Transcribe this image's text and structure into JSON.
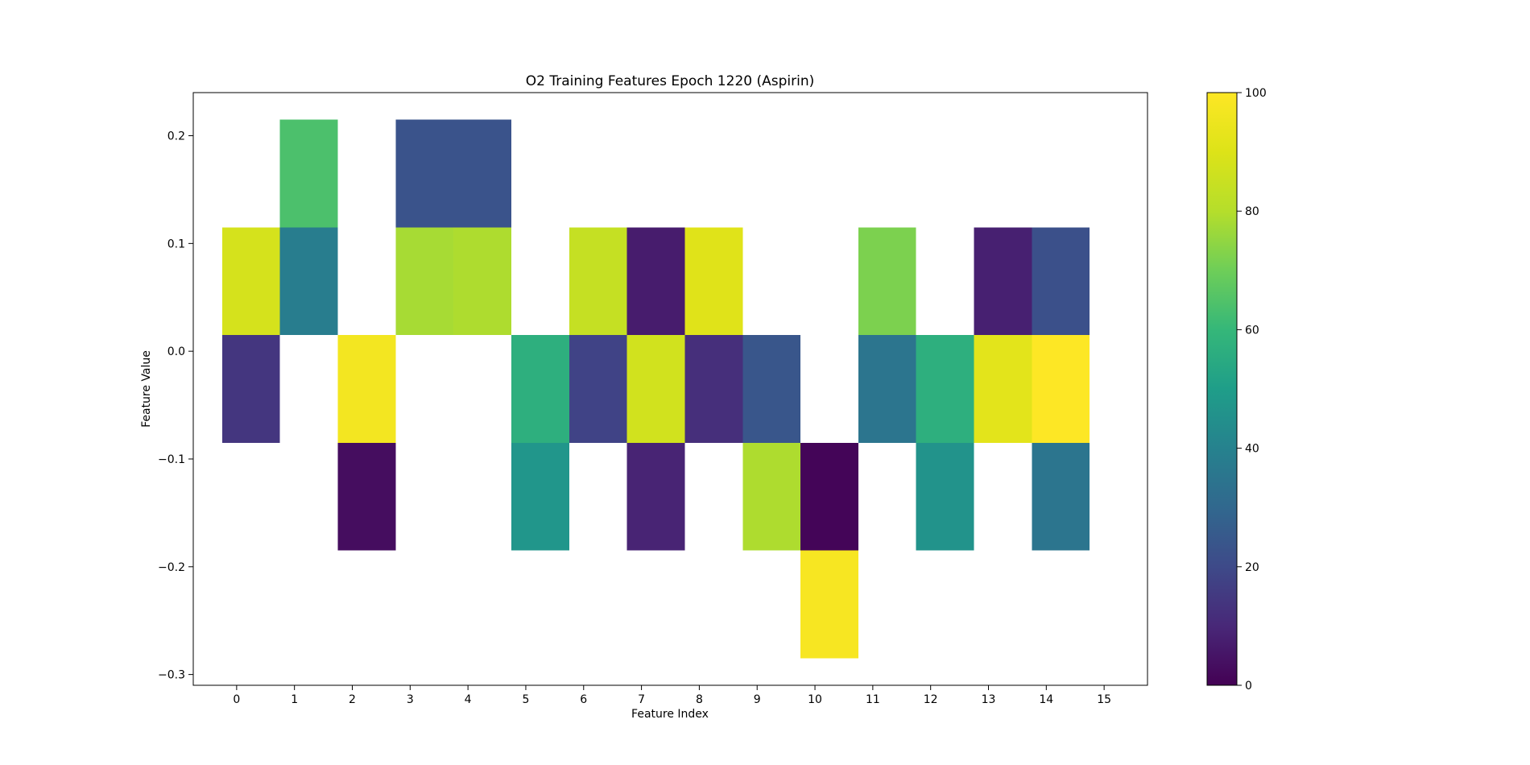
{
  "chart_data": {
    "type": "heatmap",
    "title": "O2 Training Features Epoch 1220 (Aspirin)",
    "xlabel": "Feature Index",
    "ylabel": "Feature Value",
    "x_ticks": [
      0,
      1,
      2,
      3,
      4,
      5,
      6,
      7,
      8,
      9,
      10,
      11,
      12,
      13,
      14,
      15
    ],
    "y_ticks": [
      0.2,
      0.1,
      0.0,
      -0.1,
      -0.2,
      -0.3
    ],
    "y_tick_labels": [
      "0.2",
      "0.1",
      "0.0",
      "−0.1",
      "−0.2",
      "−0.3"
    ],
    "xlim": [
      -0.75,
      15.75
    ],
    "ylim": [
      -0.31,
      0.24
    ],
    "bin_width_x": 1,
    "bin_height_y": 0.1,
    "colormap": "viridis",
    "color_range": [
      0,
      100
    ],
    "colorbar_ticks": [
      0,
      20,
      40,
      60,
      80,
      100
    ],
    "cells": [
      {
        "x0": 0,
        "y0": 0.015,
        "value": 88
      },
      {
        "x0": 0,
        "y0": -0.085,
        "value": 14
      },
      {
        "x0": 1,
        "y0": 0.115,
        "value": 64
      },
      {
        "x0": 1,
        "y0": 0.015,
        "value": 38
      },
      {
        "x0": 2,
        "y0": -0.085,
        "value": 97
      },
      {
        "x0": 2,
        "y0": -0.185,
        "value": 3
      },
      {
        "x0": 3,
        "y0": 0.115,
        "value": 23
      },
      {
        "x0": 3,
        "y0": 0.015,
        "value": 78
      },
      {
        "x0": 4,
        "y0": 0.115,
        "value": 23
      },
      {
        "x0": 4,
        "y0": 0.015,
        "value": 79
      },
      {
        "x0": 5,
        "y0": -0.085,
        "value": 57
      },
      {
        "x0": 5,
        "y0": -0.185,
        "value": 47
      },
      {
        "x0": 6,
        "y0": 0.015,
        "value": 84
      },
      {
        "x0": 6,
        "y0": -0.085,
        "value": 18
      },
      {
        "x0": 7,
        "y0": 0.015,
        "value": 7
      },
      {
        "x0": 7,
        "y0": -0.085,
        "value": 87
      },
      {
        "x0": 7,
        "y0": -0.185,
        "value": 9
      },
      {
        "x0": 8,
        "y0": 0.015,
        "value": 91
      },
      {
        "x0": 8,
        "y0": -0.085,
        "value": 12
      },
      {
        "x0": 9,
        "y0": -0.085,
        "value": 24
      },
      {
        "x0": 9,
        "y0": -0.185,
        "value": 79
      },
      {
        "x0": 10,
        "y0": -0.185,
        "value": 1
      },
      {
        "x0": 10,
        "y0": -0.285,
        "value": 98
      },
      {
        "x0": 11,
        "y0": 0.015,
        "value": 72
      },
      {
        "x0": 11,
        "y0": -0.085,
        "value": 35
      },
      {
        "x0": 12,
        "y0": -0.085,
        "value": 57
      },
      {
        "x0": 12,
        "y0": -0.185,
        "value": 46
      },
      {
        "x0": 13,
        "y0": 0.015,
        "value": 8
      },
      {
        "x0": 13,
        "y0": -0.085,
        "value": 92
      },
      {
        "x0": 14,
        "y0": 0.015,
        "value": 22
      },
      {
        "x0": 14,
        "y0": -0.085,
        "value": 100
      },
      {
        "x0": 14,
        "y0": -0.185,
        "value": 35
      }
    ]
  }
}
